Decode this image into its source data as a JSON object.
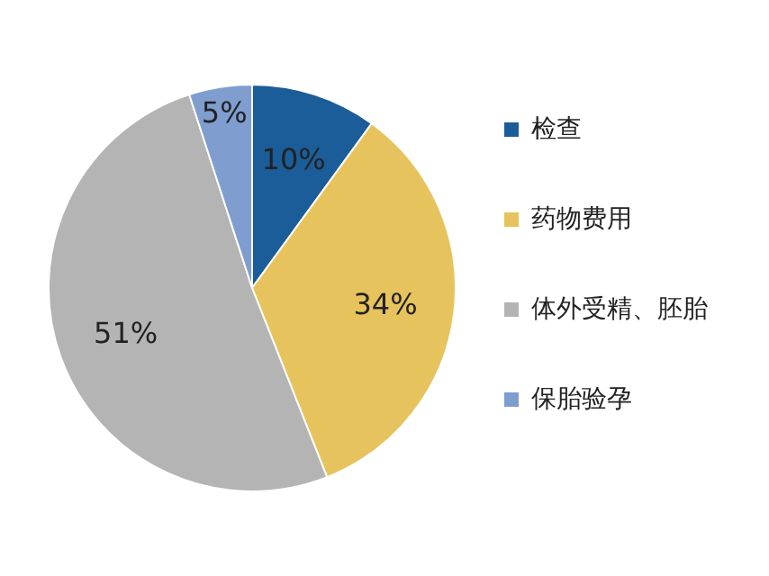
{
  "chart_data": {
    "type": "pie",
    "categories": [
      "检查",
      "药物费用",
      "体外受精、胚胎",
      "保胎验孕"
    ],
    "values": [
      10,
      34,
      51,
      5
    ],
    "colors": [
      "#1b5d98",
      "#e6c35c",
      "#b4b4b4",
      "#7f9ecf"
    ],
    "value_labels": [
      "10%",
      "34%",
      "51%",
      "5%"
    ],
    "legend": "right"
  }
}
